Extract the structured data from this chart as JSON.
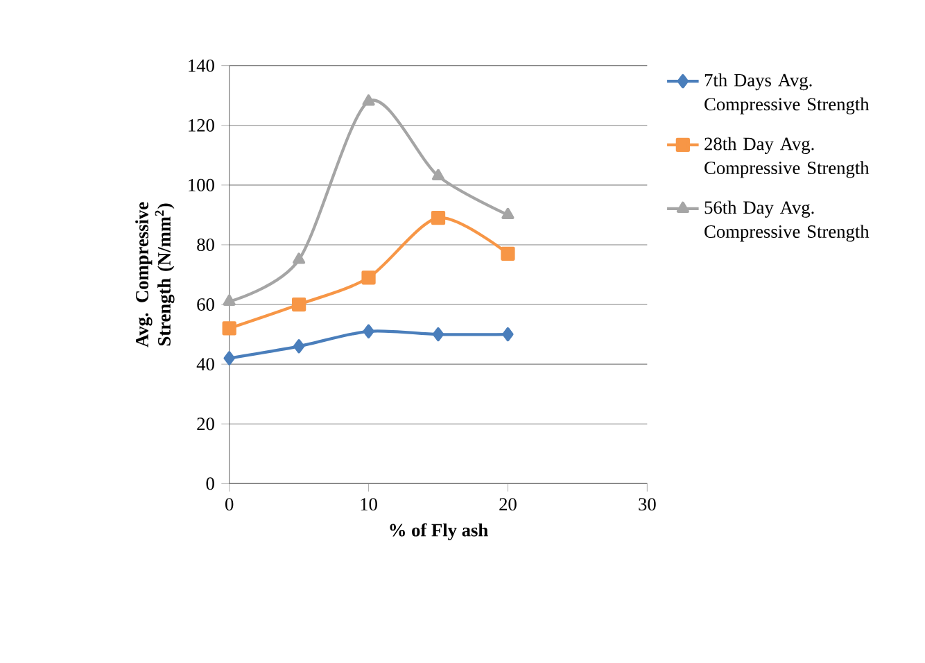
{
  "chart_data": {
    "type": "line",
    "xlabel": "% of Fly ash",
    "ylabel": "Avg. Compressive Strength (N/mm$^{2}$)",
    "x": [
      0,
      5,
      10,
      15,
      20
    ],
    "xlim": [
      0,
      30
    ],
    "xticks": [
      0,
      10,
      20,
      30
    ],
    "ylim": [
      0,
      140
    ],
    "yticks": [
      0,
      20,
      40,
      60,
      80,
      100,
      120,
      140
    ],
    "grid": "y",
    "legend": "right",
    "series": [
      {
        "name": "7th Days Avg. Compressive Strength",
        "color": "#4a7ebb",
        "marker": "diamond",
        "values": [
          42,
          46,
          51,
          50,
          50
        ]
      },
      {
        "name": "28th Day Avg. Compressive Strength",
        "color": "#f79646",
        "marker": "square",
        "values": [
          52,
          60,
          69,
          89,
          77
        ]
      },
      {
        "name": "56th Day Avg. Compressive Strength",
        "color": "#a5a5a5",
        "marker": "triangle",
        "values": [
          61,
          75,
          128,
          103,
          90
        ]
      }
    ]
  }
}
